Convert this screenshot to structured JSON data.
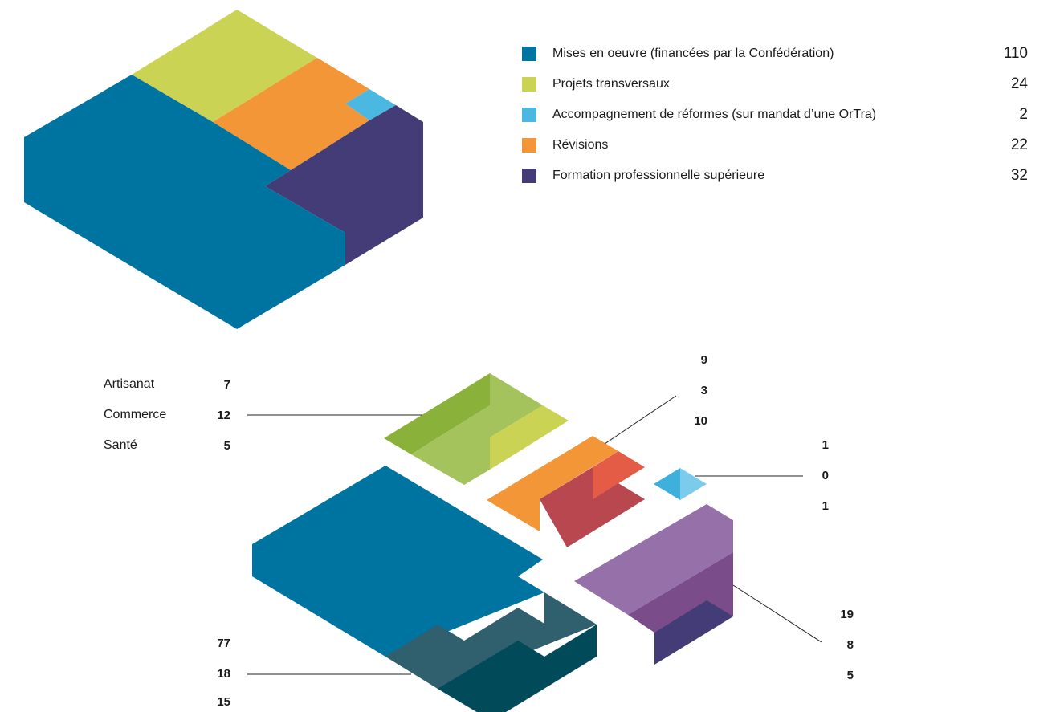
{
  "colors": {
    "implementation": "#0074a1",
    "transversal": "#cad353",
    "reform": "#4bb8e1",
    "revision": "#f29637",
    "higher": "#433c76"
  },
  "chart_data": [
    {
      "type": "isometric-block",
      "title": "",
      "legend_position": "top-right",
      "categories": [
        "Mises en oeuvre (financées par la Confédération)",
        "Projets transversaux",
        "Accompagnement de réformes (sur mandat d’une OrTra)",
        "Révisions",
        "Formation professionnelle supérieure"
      ],
      "values": [
        110,
        24,
        2,
        22,
        32
      ]
    },
    {
      "type": "isometric-exploded-block",
      "title": "",
      "sublabels": [
        "Artisanat",
        "Commerce",
        "Santé"
      ],
      "groups": [
        {
          "category": "Projets transversaux",
          "values": [
            7,
            12,
            5
          ]
        },
        {
          "category": "Révisions",
          "values": [
            9,
            3,
            10
          ]
        },
        {
          "category": "Accompagnement de réformes (sur mandat d’une OrTra)",
          "values": [
            1,
            0,
            1
          ]
        },
        {
          "category": "Formation professionnelle supérieure",
          "values": [
            19,
            8,
            5
          ]
        },
        {
          "category": "Mises en oeuvre (financées par la Confédération)",
          "values": [
            77,
            18,
            15
          ]
        }
      ]
    }
  ]
}
